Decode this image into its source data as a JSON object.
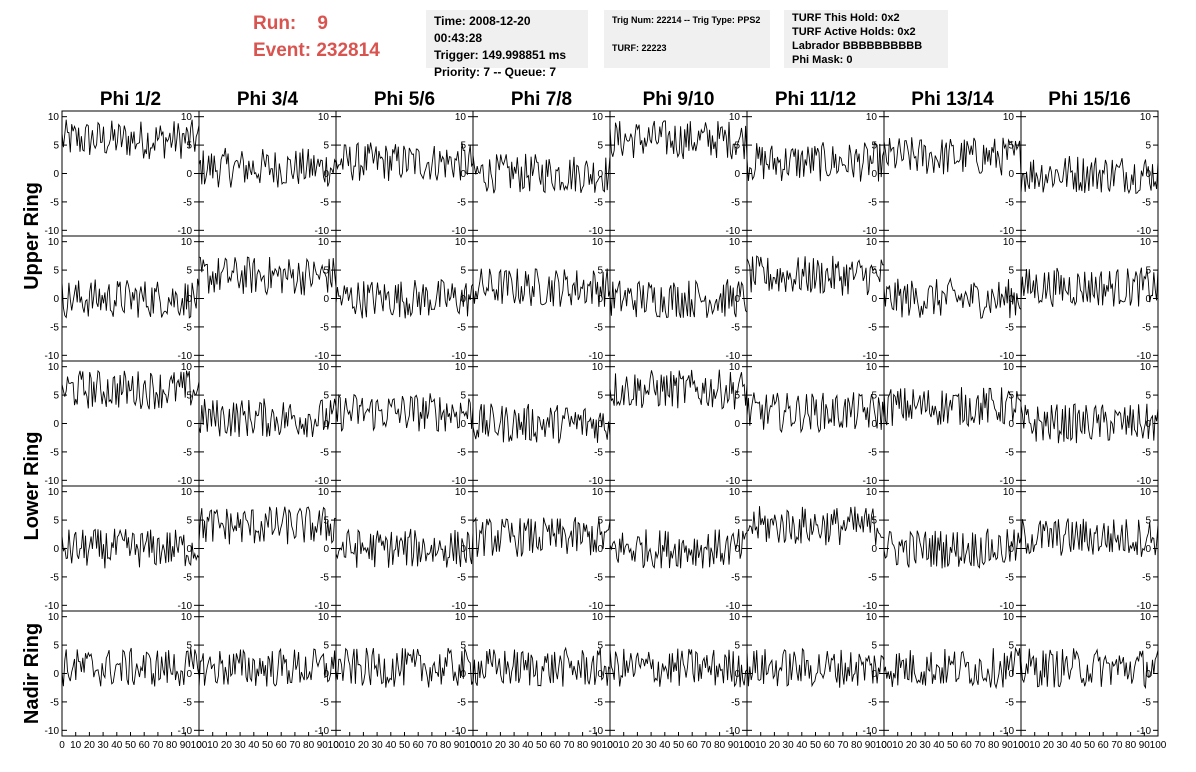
{
  "header": {
    "run_label": "Run:",
    "run_value": "9",
    "event_label": "Event:",
    "event_value": "232814",
    "info_box_1": [
      "Time: 2008-12-20 00:43:28",
      "Trigger: 149.998851 ms",
      "Priority: 7 -- Queue: 7"
    ],
    "info_box_2": [
      "Trig Num: 22214 -- Trig Type: PPS2",
      "",
      "TURF: 22223"
    ],
    "info_box_3": [
      "TURF This Hold: 0x2",
      "TURF Active Holds: 0x2",
      "Labrador BBBBBBBBBB",
      "Phi Mask: 0"
    ]
  },
  "chart_data": {
    "type": "line",
    "columns": [
      "Phi 1/2",
      "Phi 3/4",
      "Phi 5/6",
      "Phi 7/8",
      "Phi 9/10",
      "Phi 11/12",
      "Phi 13/14",
      "Phi 15/16"
    ],
    "ring_labels": [
      {
        "text": "Upper Ring",
        "rows": [
          0,
          1
        ]
      },
      {
        "text": "Lower Ring",
        "rows": [
          2,
          3
        ]
      },
      {
        "text": "Nadir Ring",
        "rows": [
          4,
          4
        ]
      }
    ],
    "rows": 5,
    "xlim": [
      0,
      100
    ],
    "ylim": [
      -11,
      11
    ],
    "y_ticks": [
      10,
      5,
      0,
      -5,
      -10
    ],
    "x_tick_labels": [
      "0",
      "10",
      "20",
      "30",
      "40",
      "50",
      "60",
      "70",
      "80",
      "90",
      "100"
    ],
    "samples": 100,
    "panel_baselines": [
      [
        6,
        1,
        2,
        0,
        6,
        2,
        3,
        0
      ],
      [
        0,
        4,
        0,
        2,
        0,
        4,
        0,
        2
      ],
      [
        6,
        1,
        2,
        0,
        6,
        2,
        3,
        0
      ],
      [
        0,
        4,
        0,
        2,
        0,
        4,
        0,
        2
      ],
      [
        1,
        1,
        1,
        1,
        1,
        1,
        1,
        1
      ]
    ],
    "colors": {
      "trace": "#000000",
      "frame": "#000000"
    }
  }
}
